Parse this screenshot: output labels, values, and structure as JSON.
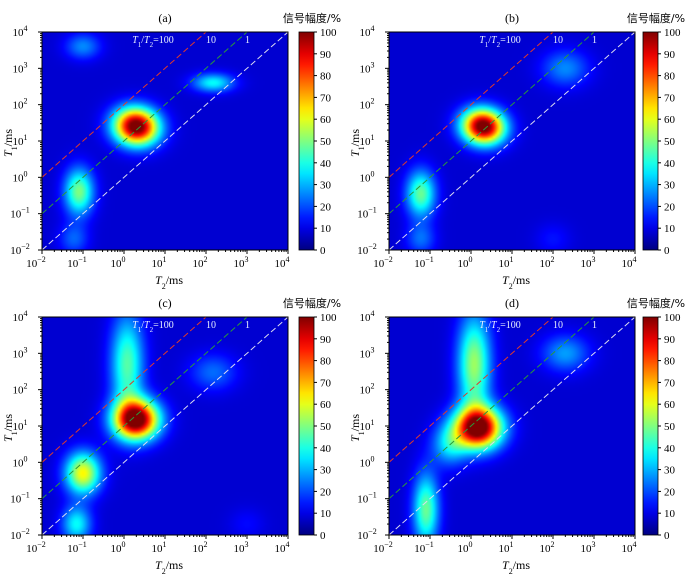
{
  "figure": {
    "colorbar_title": "信号幅度/%",
    "colorbar_ticks": [
      "0",
      "10",
      "20",
      "30",
      "40",
      "50",
      "60",
      "70",
      "80",
      "90",
      "100"
    ],
    "x_axis_label": {
      "main": "T",
      "sub": "2",
      "unit": "/ms"
    },
    "y_axis_label": {
      "main": "T",
      "sub": "1",
      "unit": "/ms"
    },
    "tick_exponents": [
      "−2",
      "−1",
      "0",
      "1",
      "2",
      "3",
      "4"
    ],
    "ratio_labels": {
      "r100": {
        "main": "T",
        "sub1": "1",
        "slash": "/",
        "main2": "T",
        "sub2": "2",
        "value": "=100"
      },
      "r10": "10",
      "r1": "1"
    },
    "reference_line_colors": {
      "r100": "#e03a2a",
      "r10": "#2a9a3a",
      "r1": "#dcdcf0"
    }
  },
  "chart_data": [
    {
      "type": "heatmap",
      "panel_label": "(a)",
      "x_scale": "log",
      "y_scale": "log",
      "xlim": [
        0.01,
        10000
      ],
      "ylim": [
        0.01,
        10000
      ],
      "clim": [
        0,
        100
      ],
      "reference_lines": [
        {
          "label": "T1/T2=100",
          "ratio": 100
        },
        {
          "label": "10",
          "ratio": 10
        },
        {
          "label": "1",
          "ratio": 1
        }
      ],
      "peaks": [
        {
          "t2_ms": 2,
          "t1_ms": 25,
          "amplitude_pct": 100,
          "spread_x_decades": 0.38,
          "spread_y_decades": 0.35,
          "tilt": 0.35
        },
        {
          "t2_ms": 0.08,
          "t1_ms": 0.4,
          "amplitude_pct": 42,
          "spread_x_decades": 0.25,
          "spread_y_decades": 0.45,
          "tilt": 0.0
        },
        {
          "t2_ms": 150,
          "t1_ms": 400,
          "amplitude_pct": 30,
          "spread_x_decades": 0.35,
          "spread_y_decades": 0.18,
          "tilt": 0.0
        },
        {
          "t2_ms": 0.1,
          "t1_ms": 4000,
          "amplitude_pct": 18,
          "spread_x_decades": 0.3,
          "spread_y_decades": 0.25,
          "tilt": 0.0
        },
        {
          "t2_ms": 0.06,
          "t1_ms": 0.02,
          "amplitude_pct": 14,
          "spread_x_decades": 0.25,
          "spread_y_decades": 0.3,
          "tilt": 0.0
        }
      ]
    },
    {
      "type": "heatmap",
      "panel_label": "(b)",
      "x_scale": "log",
      "y_scale": "log",
      "xlim": [
        0.01,
        10000
      ],
      "ylim": [
        0.01,
        10000
      ],
      "clim": [
        0,
        100
      ],
      "reference_lines": [
        {
          "label": "T1/T2=100",
          "ratio": 100
        },
        {
          "label": "10",
          "ratio": 10
        },
        {
          "label": "1",
          "ratio": 1
        }
      ],
      "peaks": [
        {
          "t2_ms": 2,
          "t1_ms": 25,
          "amplitude_pct": 100,
          "spread_x_decades": 0.36,
          "spread_y_decades": 0.33,
          "tilt": 0.35
        },
        {
          "t2_ms": 0.06,
          "t1_ms": 0.35,
          "amplitude_pct": 40,
          "spread_x_decades": 0.25,
          "spread_y_decades": 0.45,
          "tilt": 0.0
        },
        {
          "t2_ms": 200,
          "t1_ms": 1000,
          "amplitude_pct": 18,
          "spread_x_decades": 0.4,
          "spread_y_decades": 0.35,
          "tilt": 0.0
        },
        {
          "t2_ms": 0.06,
          "t1_ms": 0.02,
          "amplitude_pct": 15,
          "spread_x_decades": 0.25,
          "spread_y_decades": 0.3,
          "tilt": 0.0
        },
        {
          "t2_ms": 100,
          "t1_ms": 0.02,
          "amplitude_pct": 6,
          "spread_x_decades": 0.3,
          "spread_y_decades": 0.3,
          "tilt": 0.0
        }
      ]
    },
    {
      "type": "heatmap",
      "panel_label": "(c)",
      "x_scale": "log",
      "y_scale": "log",
      "xlim": [
        0.01,
        10000
      ],
      "ylim": [
        0.01,
        10000
      ],
      "clim": [
        0,
        100
      ],
      "reference_lines": [
        {
          "label": "T1/T2=100",
          "ratio": 100
        },
        {
          "label": "10",
          "ratio": 10
        },
        {
          "label": "1",
          "ratio": 1
        }
      ],
      "peaks": [
        {
          "t2_ms": 2,
          "t1_ms": 15,
          "amplitude_pct": 100,
          "spread_x_decades": 0.38,
          "spread_y_decades": 0.38,
          "tilt": 0.3
        },
        {
          "t2_ms": 0.1,
          "t1_ms": 0.5,
          "amplitude_pct": 55,
          "spread_x_decades": 0.3,
          "spread_y_decades": 0.4,
          "tilt": 0.0
        },
        {
          "t2_ms": 1.2,
          "t1_ms": 500,
          "amplitude_pct": 38,
          "spread_x_decades": 0.28,
          "spread_y_decades": 0.95,
          "tilt": 0.0
        },
        {
          "t2_ms": 0.07,
          "t1_ms": 0.02,
          "amplitude_pct": 30,
          "spread_x_decades": 0.25,
          "spread_y_decades": 0.35,
          "tilt": 0.0
        },
        {
          "t2_ms": 150,
          "t1_ms": 300,
          "amplitude_pct": 15,
          "spread_x_decades": 0.4,
          "spread_y_decades": 0.35,
          "tilt": 0.0
        },
        {
          "t2_ms": 1000,
          "t1_ms": 0.02,
          "amplitude_pct": 5,
          "spread_x_decades": 0.3,
          "spread_y_decades": 0.3,
          "tilt": 0.0
        }
      ]
    },
    {
      "type": "heatmap",
      "panel_label": "(d)",
      "x_scale": "log",
      "y_scale": "log",
      "xlim": [
        0.01,
        10000
      ],
      "ylim": [
        0.01,
        10000
      ],
      "clim": [
        0,
        100
      ],
      "reference_lines": [
        {
          "label": "T1/T2=100",
          "ratio": 100
        },
        {
          "label": "10",
          "ratio": 10
        },
        {
          "label": "1",
          "ratio": 1
        }
      ],
      "peaks": [
        {
          "t2_ms": 1.5,
          "t1_ms": 9,
          "amplitude_pct": 100,
          "spread_x_decades": 0.4,
          "spread_y_decades": 0.4,
          "tilt": 0.3
        },
        {
          "t2_ms": 0.08,
          "t1_ms": 0.05,
          "amplitude_pct": 40,
          "spread_x_decades": 0.22,
          "spread_y_decades": 0.7,
          "tilt": 0.0
        },
        {
          "t2_ms": 1.2,
          "t1_ms": 500,
          "amplitude_pct": 45,
          "spread_x_decades": 0.28,
          "spread_y_decades": 0.95,
          "tilt": 0.0
        },
        {
          "t2_ms": 200,
          "t1_ms": 1000,
          "amplitude_pct": 20,
          "spread_x_decades": 0.4,
          "spread_y_decades": 0.35,
          "tilt": 0.0
        },
        {
          "t2_ms": 0.3,
          "t1_ms": 3,
          "amplitude_pct": 25,
          "spread_x_decades": 0.3,
          "spread_y_decades": 0.4,
          "tilt": 0.0
        }
      ]
    }
  ]
}
